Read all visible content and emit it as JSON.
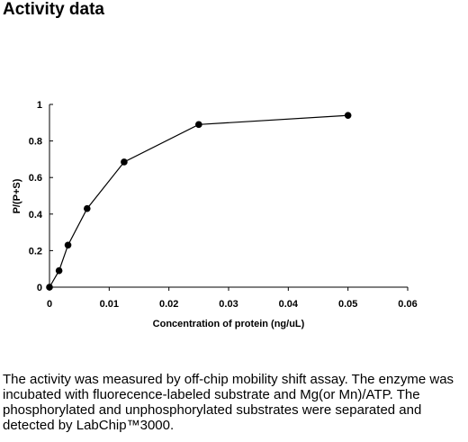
{
  "page": {
    "heading": "Activity data",
    "caption": "The activity was measured by off-chip mobility shift assay. The enzyme was incubated with fluorecence-labeled  substrate and Mg(or Mn)/ATP. The phosphorylated and unphosphorylated substrates were separated and detected by LabChip™3000."
  },
  "chart_data": {
    "type": "line",
    "title": "",
    "xlabel": "Concentration of protein (ng/uL)",
    "ylabel": "P/(P+S)",
    "xlim": [
      0,
      0.06
    ],
    "ylim": [
      0,
      1
    ],
    "x_ticks": [
      "0",
      "0.01",
      "0.02",
      "0.03",
      "0.04",
      "0.05",
      "0.06"
    ],
    "y_ticks": [
      "0",
      "0.2",
      "0.4",
      "0.6",
      "0.8",
      "1"
    ],
    "x_tick_values": [
      0,
      0.01,
      0.02,
      0.03,
      0.04,
      0.05,
      0.06
    ],
    "y_tick_values": [
      0,
      0.2,
      0.4,
      0.6,
      0.8,
      1
    ],
    "grid": false,
    "series": [
      {
        "x": [
          0,
          0.0016,
          0.0031,
          0.0063,
          0.0125,
          0.025,
          0.05
        ],
        "y": [
          0,
          0.09,
          0.23,
          0.43,
          0.685,
          0.89,
          0.94
        ]
      }
    ]
  }
}
